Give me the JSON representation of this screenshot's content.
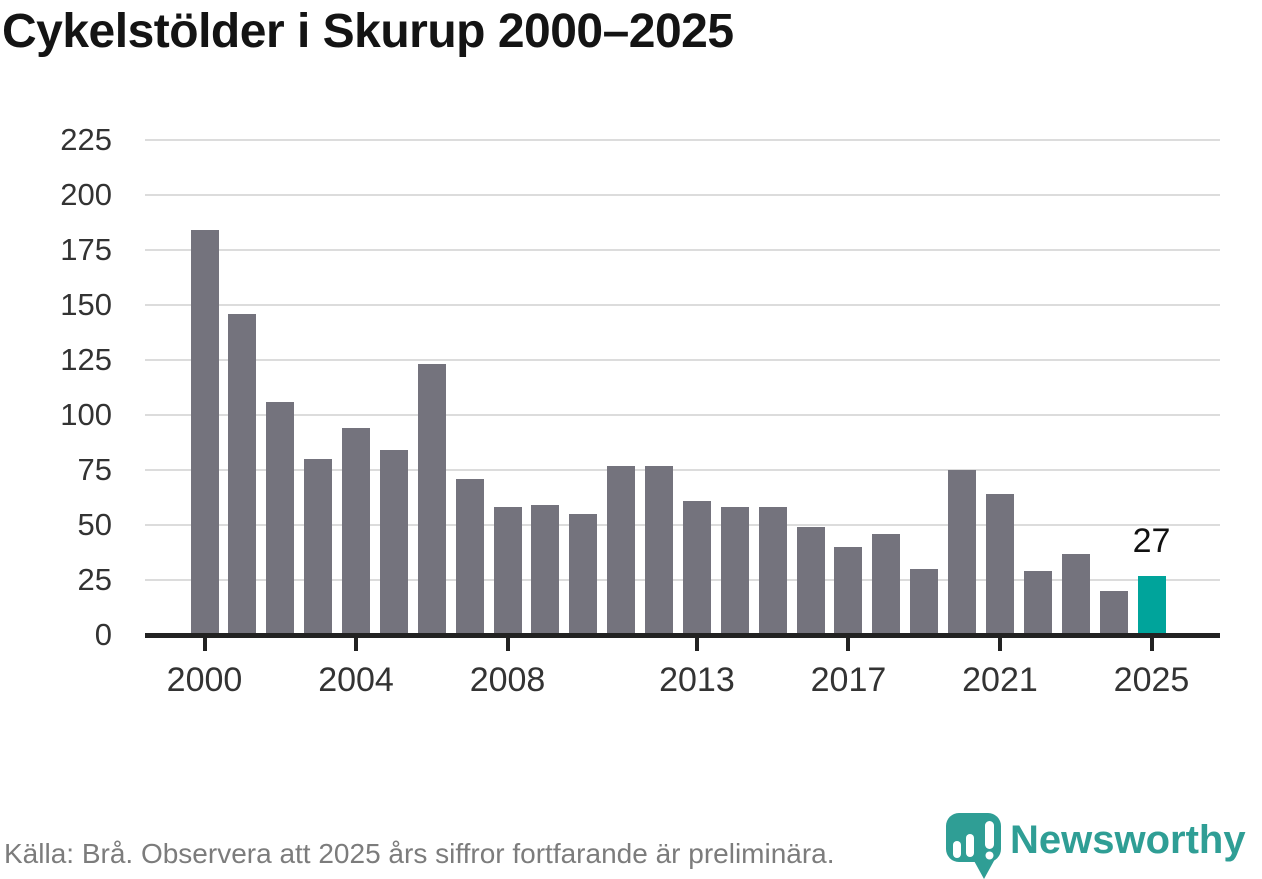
{
  "title": "Cykelstölder i Skurup 2000–2025",
  "source": {
    "text": "Källa: Brå. Observera att 2025 års siffror fortfarande är preliminära."
  },
  "brand": {
    "name": "Newsworthy",
    "icon": "newsworthy-pin-icon"
  },
  "colors": {
    "background": "#ffffff",
    "title": "#141414",
    "bar": "#74737d",
    "highlight": "#00a49b",
    "gridline": "#dcdcdc",
    "axis": "#222222",
    "tick_label": "#333333",
    "annotation": "#111111",
    "source_text": "#7c7c7c",
    "brand": "#2f9e95"
  },
  "chart_data": {
    "type": "bar",
    "title": "Cykelstölder i Skurup 2000–2025",
    "xlabel": "",
    "ylabel": "",
    "x": [
      2000,
      2001,
      2002,
      2003,
      2004,
      2005,
      2006,
      2007,
      2008,
      2009,
      2010,
      2011,
      2012,
      2013,
      2014,
      2015,
      2016,
      2017,
      2018,
      2019,
      2020,
      2021,
      2022,
      2023,
      2024,
      2025
    ],
    "values": [
      184,
      146,
      106,
      80,
      94,
      84,
      123,
      71,
      58,
      59,
      55,
      77,
      77,
      61,
      58,
      58,
      49,
      40,
      46,
      30,
      75,
      64,
      29,
      37,
      20,
      27
    ],
    "highlight_year": 2025,
    "annotation": {
      "year": 2025,
      "text": "27"
    },
    "ylim": [
      0,
      225
    ],
    "yticks": [
      0,
      25,
      50,
      75,
      100,
      125,
      150,
      175,
      200,
      225
    ],
    "xticks": [
      2000,
      2004,
      2008,
      2013,
      2017,
      2021,
      2025
    ],
    "grid": true,
    "legend": false
  }
}
